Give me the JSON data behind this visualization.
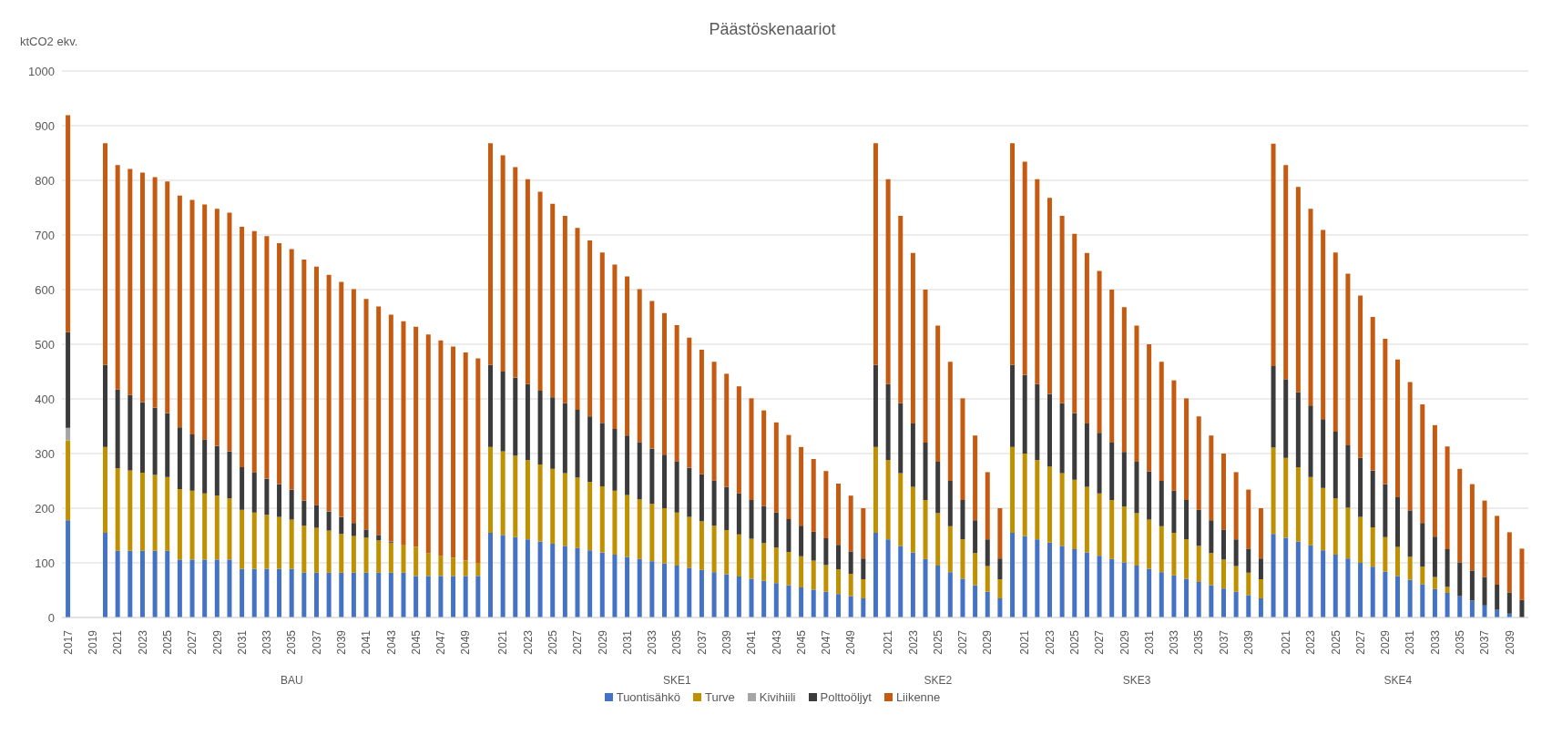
{
  "chart_data": {
    "type": "bar",
    "title": "Päästöskenaariot",
    "ylabel": "ktCO2 ekv.",
    "stacked": true,
    "grid": "y",
    "legend": "bottom",
    "ylim": [
      0,
      1000
    ],
    "yticks": [
      0,
      100,
      200,
      300,
      400,
      500,
      600,
      700,
      800,
      900,
      1000
    ],
    "categories": [
      "2017",
      null,
      "2019",
      null,
      "2021",
      null,
      "2023",
      null,
      "2025",
      null,
      "2027",
      null,
      "2029",
      null,
      "2031",
      null,
      "2033",
      null,
      "2035",
      null,
      "2037",
      null,
      "2039",
      null,
      "2041",
      null,
      "2043",
      null,
      "2045",
      null,
      "2047",
      null,
      "2049",
      null,
      null,
      "2021",
      null,
      "2023",
      null,
      "2025",
      null,
      "2027",
      null,
      "2029",
      null,
      "2031",
      null,
      "2033",
      null,
      "2035",
      null,
      "2037",
      null,
      "2039",
      null,
      "2041",
      null,
      "2043",
      null,
      "2045",
      null,
      "2047",
      null,
      "2049",
      null,
      null,
      "2021",
      null,
      "2023",
      null,
      "2025",
      null,
      "2027",
      null,
      "2029",
      null,
      null,
      "2021",
      null,
      "2023",
      null,
      "2025",
      null,
      "2027",
      null,
      "2029",
      null,
      "2031",
      null,
      "2033",
      null,
      "2035",
      null,
      "2037",
      null,
      "2039",
      null,
      null,
      "2021",
      null,
      "2023",
      null,
      "2025",
      null,
      "2027",
      null,
      "2029",
      null,
      "2031",
      null,
      "2033",
      null,
      "2035",
      null,
      "2037",
      null,
      "2039",
      null
    ],
    "annotations": [
      "BAU",
      "SKE1",
      "SKE2",
      "SKE3",
      "SKE4"
    ],
    "series": [
      {
        "name": "Tuontisähkö",
        "color": "#4472c4",
        "values": [
          178,
          null,
          null,
          155,
          122,
          122,
          122,
          122,
          122,
          106,
          106,
          106,
          106,
          106,
          89,
          89,
          89,
          89,
          89,
          82,
          82,
          82,
          82,
          82,
          82,
          82,
          82,
          82,
          76,
          76,
          76,
          76,
          76,
          76,
          155,
          151,
          147,
          143,
          139,
          135,
          131,
          127,
          123,
          119,
          115,
          111,
          107,
          103,
          99,
          95,
          91,
          87,
          83,
          79,
          75,
          71,
          67,
          63,
          59,
          55,
          51,
          47,
          43,
          39,
          35,
          155,
          143,
          131,
          119,
          107,
          95,
          83,
          71,
          59,
          47,
          35,
          155,
          149,
          143,
          137,
          131,
          125,
          119,
          113,
          107,
          101,
          95,
          89,
          83,
          77,
          71,
          65,
          59,
          53,
          47,
          41,
          35,
          153,
          146,
          139,
          132,
          123,
          115,
          108,
          100,
          93,
          84,
          76,
          69,
          61,
          52,
          45,
          39,
          31,
          22,
          14,
          7,
          0
        ]
      },
      {
        "name": "Turve",
        "color": "#bf9000",
        "values": [
          146,
          null,
          null,
          157,
          151,
          147,
          143,
          139,
          135,
          129,
          126,
          121,
          117,
          112,
          108,
          103,
          99,
          95,
          90,
          86,
          82,
          77,
          71,
          67,
          64,
          59,
          55,
          50,
          53,
          42,
          37,
          33,
          28,
          24,
          157,
          153,
          149,
          145,
          141,
          137,
          133,
          129,
          125,
          121,
          117,
          113,
          109,
          105,
          101,
          97,
          93,
          89,
          85,
          81,
          77,
          73,
          69,
          65,
          61,
          57,
          53,
          49,
          45,
          41,
          35,
          157,
          145,
          133,
          120,
          108,
          96,
          84,
          72,
          59,
          47,
          35,
          157,
          151,
          145,
          139,
          133,
          127,
          120,
          114,
          108,
          102,
          96,
          90,
          84,
          78,
          72,
          66,
          59,
          53,
          47,
          41,
          35,
          158,
          146,
          136,
          125,
          114,
          103,
          93,
          84,
          72,
          63,
          53,
          42,
          32,
          22,
          11,
          0,
          0,
          0,
          0,
          0,
          0
        ]
      },
      {
        "name": "Kivihiili",
        "color": "#a5a5a5",
        "values": [
          23,
          null,
          null,
          0,
          0,
          0,
          0,
          0,
          0,
          0,
          0,
          0,
          0,
          0,
          0,
          0,
          0,
          0,
          0,
          0,
          0,
          0,
          0,
          0,
          0,
          0,
          0,
          0,
          0,
          0,
          0,
          0,
          0,
          0,
          0,
          0,
          0,
          0,
          0,
          0,
          0,
          0,
          0,
          0,
          0,
          0,
          0,
          0,
          0,
          0,
          0,
          0,
          0,
          0,
          0,
          0,
          0,
          0,
          0,
          0,
          0,
          0,
          0,
          0,
          0,
          0,
          0,
          0,
          0,
          0,
          0,
          0,
          0,
          0,
          0,
          0,
          0,
          0,
          0,
          0,
          0,
          0,
          0,
          0,
          0,
          0,
          0,
          0,
          0,
          0,
          0,
          0,
          0,
          0,
          0,
          0,
          0,
          0,
          0,
          0,
          0,
          0,
          0,
          0,
          0,
          0,
          0,
          0,
          0,
          0,
          0,
          0,
          0,
          0,
          0,
          0,
          0,
          0
        ]
      },
      {
        "name": "Polttoöljyt",
        "color": "#3b3b3b",
        "values": [
          175,
          null,
          null,
          150,
          144,
          138,
          129,
          123,
          117,
          113,
          103,
          99,
          91,
          86,
          78,
          74,
          66,
          60,
          55,
          46,
          42,
          35,
          31,
          24,
          15,
          10,
          2,
          0,
          0,
          0,
          0,
          0,
          0,
          0,
          150,
          146,
          143,
          139,
          135,
          131,
          128,
          124,
          120,
          116,
          113,
          109,
          105,
          101,
          98,
          94,
          90,
          86,
          83,
          79,
          75,
          71,
          68,
          64,
          60,
          56,
          53,
          49,
          45,
          41,
          38,
          150,
          139,
          128,
          116,
          105,
          94,
          83,
          72,
          60,
          49,
          38,
          150,
          144,
          139,
          133,
          128,
          122,
          116,
          111,
          105,
          100,
          94,
          88,
          83,
          77,
          72,
          66,
          60,
          55,
          49,
          44,
          38,
          149,
          144,
          137,
          131,
          126,
          122,
          114,
          108,
          104,
          97,
          91,
          85,
          80,
          74,
          69,
          62,
          55,
          52,
          46,
          39,
          32
        ]
      },
      {
        "name": "Liikenne",
        "color": "#c55a11",
        "values": [
          397,
          null,
          null,
          406,
          411,
          414,
          420,
          422,
          424,
          424,
          429,
          430,
          434,
          437,
          440,
          441,
          444,
          441,
          440,
          441,
          436,
          433,
          430,
          428,
          422,
          418,
          415,
          410,
          403,
          400,
          394,
          387,
          381,
          374,
          406,
          396,
          385,
          375,
          364,
          354,
          343,
          333,
          322,
          312,
          301,
          291,
          280,
          270,
          259,
          249,
          238,
          228,
          217,
          207,
          196,
          186,
          175,
          165,
          154,
          144,
          133,
          123,
          112,
          102,
          92,
          406,
          375,
          343,
          312,
          280,
          249,
          218,
          186,
          155,
          123,
          92,
          406,
          390,
          375,
          359,
          343,
          328,
          312,
          296,
          280,
          265,
          249,
          233,
          218,
          202,
          186,
          171,
          155,
          139,
          123,
          108,
          92,
          407,
          392,
          376,
          360,
          346,
          328,
          314,
          297,
          281,
          266,
          252,
          235,
          217,
          204,
          188,
          171,
          158,
          140,
          126,
          110,
          94
        ]
      }
    ]
  }
}
